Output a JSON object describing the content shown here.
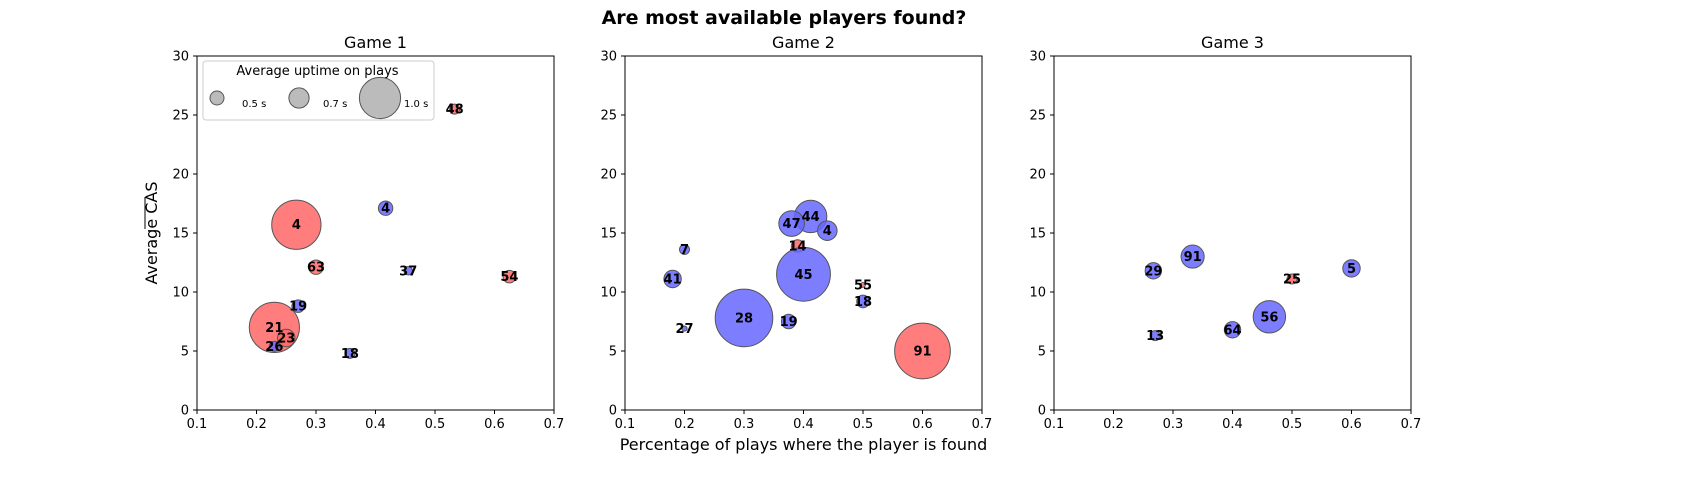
{
  "title": "Are most available players found?",
  "colors": {
    "found": "#ff6666",
    "other": "#6666ff",
    "edge": "#555555"
  },
  "chart_data": [
    {
      "type": "scatter",
      "title": "Game 1",
      "xlim": [
        0.1,
        0.7
      ],
      "ylim": [
        0,
        30
      ],
      "xticks": [
        "0.1",
        "0.2",
        "0.3",
        "0.4",
        "0.5",
        "0.6",
        "0.7"
      ],
      "yticks": [
        "0",
        "5",
        "10",
        "15",
        "20",
        "25",
        "30"
      ],
      "ylabel": "Average CAS",
      "xlabel": "",
      "legend": {
        "title": "Average uptime on plays",
        "placement": "top-left",
        "entries": [
          {
            "label": "0.5 s",
            "value": 0.5
          },
          {
            "label": "0.7 s",
            "value": 0.7
          },
          {
            "label": "1.0 s",
            "value": 1.0
          }
        ]
      },
      "points": [
        {
          "label": "48",
          "x": 0.533,
          "y": 25.5,
          "uptime": 0.5,
          "color": "red"
        },
        {
          "label": "4",
          "x": 0.267,
          "y": 15.7,
          "uptime": 1.11,
          "color": "red"
        },
        {
          "label": "4",
          "x": 0.417,
          "y": 17.1,
          "uptime": 0.6,
          "color": "blue"
        },
        {
          "label": "63",
          "x": 0.3,
          "y": 12.1,
          "uptime": 0.6,
          "color": "red"
        },
        {
          "label": "37",
          "x": 0.455,
          "y": 11.8,
          "uptime": 0.46,
          "color": "blue"
        },
        {
          "label": "54",
          "x": 0.625,
          "y": 11.3,
          "uptime": 0.56,
          "color": "red"
        },
        {
          "label": "19",
          "x": 0.27,
          "y": 8.8,
          "uptime": 0.56,
          "color": "blue"
        },
        {
          "label": "21",
          "x": 0.23,
          "y": 7.0,
          "uptime": 1.12,
          "color": "red"
        },
        {
          "label": "23",
          "x": 0.25,
          "y": 6.1,
          "uptime": 0.66,
          "color": "red"
        },
        {
          "label": "26",
          "x": 0.23,
          "y": 5.4,
          "uptime": 0.5,
          "color": "blue"
        },
        {
          "label": "18",
          "x": 0.357,
          "y": 4.8,
          "uptime": 0.5,
          "color": "blue"
        }
      ]
    },
    {
      "type": "scatter",
      "title": "Game 2",
      "xlim": [
        0.1,
        0.7
      ],
      "ylim": [
        0,
        30
      ],
      "xticks": [
        "0.1",
        "0.2",
        "0.3",
        "0.4",
        "0.5",
        "0.6",
        "0.7"
      ],
      "yticks": [
        "0",
        "5",
        "10",
        "15",
        "20",
        "25",
        "30"
      ],
      "ylabel": "",
      "xlabel": "Percentage of plays where the player is found",
      "points": [
        {
          "label": "44",
          "x": 0.412,
          "y": 16.4,
          "uptime": 0.9,
          "color": "blue"
        },
        {
          "label": "47",
          "x": 0.38,
          "y": 15.8,
          "uptime": 0.8,
          "color": "blue"
        },
        {
          "label": "4",
          "x": 0.44,
          "y": 15.2,
          "uptime": 0.7,
          "color": "blue"
        },
        {
          "label": "14",
          "x": 0.39,
          "y": 13.9,
          "uptime": 0.56,
          "color": "red"
        },
        {
          "label": "7",
          "x": 0.2,
          "y": 13.6,
          "uptime": 0.5,
          "color": "blue"
        },
        {
          "label": "45",
          "x": 0.4,
          "y": 11.5,
          "uptime": 1.16,
          "color": "blue"
        },
        {
          "label": "41",
          "x": 0.18,
          "y": 11.1,
          "uptime": 0.66,
          "color": "blue"
        },
        {
          "label": "55",
          "x": 0.5,
          "y": 10.6,
          "uptime": 0.35,
          "color": "red"
        },
        {
          "label": "18",
          "x": 0.5,
          "y": 9.2,
          "uptime": 0.56,
          "color": "blue"
        },
        {
          "label": "28",
          "x": 0.3,
          "y": 7.8,
          "uptime": 1.2,
          "color": "blue"
        },
        {
          "label": "19",
          "x": 0.375,
          "y": 7.5,
          "uptime": 0.6,
          "color": "blue"
        },
        {
          "label": "27",
          "x": 0.2,
          "y": 6.9,
          "uptime": 0.36,
          "color": "blue"
        },
        {
          "label": "91",
          "x": 0.6,
          "y": 5.0,
          "uptime": 1.18,
          "color": "red"
        }
      ]
    },
    {
      "type": "scatter",
      "title": "Game 3",
      "xlim": [
        0.1,
        0.7
      ],
      "ylim": [
        0,
        30
      ],
      "xticks": [
        "0.1",
        "0.2",
        "0.3",
        "0.4",
        "0.5",
        "0.6",
        "0.7"
      ],
      "yticks": [
        "0",
        "5",
        "10",
        "15",
        "20",
        "25",
        "30"
      ],
      "ylabel": "",
      "xlabel": "",
      "points": [
        {
          "label": "91",
          "x": 0.333,
          "y": 13.0,
          "uptime": 0.76,
          "color": "blue"
        },
        {
          "label": "5",
          "x": 0.6,
          "y": 12.0,
          "uptime": 0.66,
          "color": "blue"
        },
        {
          "label": "29",
          "x": 0.267,
          "y": 11.8,
          "uptime": 0.64,
          "color": "blue"
        },
        {
          "label": "25",
          "x": 0.5,
          "y": 11.1,
          "uptime": 0.5,
          "color": "red"
        },
        {
          "label": "56",
          "x": 0.462,
          "y": 7.9,
          "uptime": 0.9,
          "color": "blue"
        },
        {
          "label": "64",
          "x": 0.4,
          "y": 6.8,
          "uptime": 0.64,
          "color": "blue"
        },
        {
          "label": "13",
          "x": 0.27,
          "y": 6.3,
          "uptime": 0.5,
          "color": "blue"
        }
      ]
    }
  ]
}
